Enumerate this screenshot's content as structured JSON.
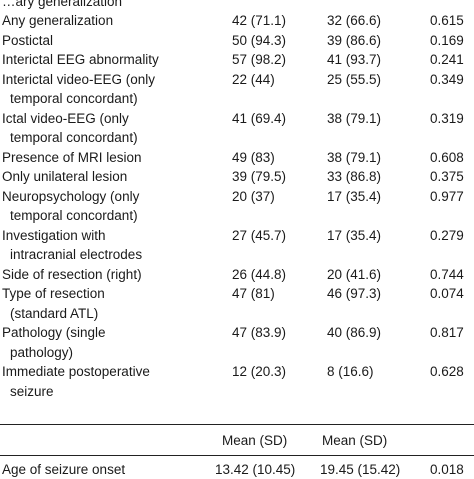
{
  "table": {
    "partial_top_label": "…ary generalization",
    "rows": [
      {
        "label": [
          "Any generalization"
        ],
        "a": "42 (71.1)",
        "b": "32 (66.6)",
        "p": "0.615"
      },
      {
        "label": [
          "Postictal"
        ],
        "a": "50 (94.3)",
        "b": "39 (86.6)",
        "p": "0.169"
      },
      {
        "label": [
          "Interictal EEG abnormality"
        ],
        "a": "57 (98.2)",
        "b": "41 (93.7)",
        "p": "0.241"
      },
      {
        "label": [
          "Interictal video-EEG (only",
          "temporal concordant)"
        ],
        "a": "22 (44)",
        "b": "25 (55.5)",
        "p": "0.349"
      },
      {
        "label": [
          "Ictal video-EEG (only",
          "temporal concordant)"
        ],
        "a": "41 (69.4)",
        "b": "38 (79.1)",
        "p": "0.319"
      },
      {
        "label": [
          "Presence of MRI lesion"
        ],
        "a": "49 (83)",
        "b": "38 (79.1)",
        "p": "0.608"
      },
      {
        "label": [
          "Only unilateral lesion"
        ],
        "a": "39 (79.5)",
        "b": "33 (86.8)",
        "p": "0.375"
      },
      {
        "label": [
          "Neuropsychology (only",
          "temporal concordant)"
        ],
        "a": "20 (37)",
        "b": "17 (35.4)",
        "p": "0.977"
      },
      {
        "label": [
          "Investigation with",
          "intracranial electrodes"
        ],
        "a": "27 (45.7)",
        "b": "17 (35.4)",
        "p": "0.279"
      },
      {
        "label": [
          "Side of resection (right)"
        ],
        "a": "26 (44.8)",
        "b": "20 (41.6)",
        "p": "0.744"
      },
      {
        "label": [
          "Type of resection",
          "(standard ATL)"
        ],
        "a": "47 (81)",
        "b": "46 (97.3)",
        "p": "0.074"
      },
      {
        "label": [
          "Pathology (single",
          "pathology)"
        ],
        "a": "47 (83.9)",
        "b": "40 (86.9)",
        "p": "0.817"
      },
      {
        "label": [
          "Immediate postoperative",
          "seizure"
        ],
        "a": "12 (20.3)",
        "b": "8 (16.6)",
        "p": "0.628"
      }
    ],
    "subheader": {
      "col_a": "Mean (SD)",
      "col_b": "Mean (SD)"
    },
    "bottom_row": {
      "label": "Age of seizure onset",
      "a": "13.42 (10.45)",
      "b": "19.45 (15.42)",
      "p": "0.018"
    }
  }
}
